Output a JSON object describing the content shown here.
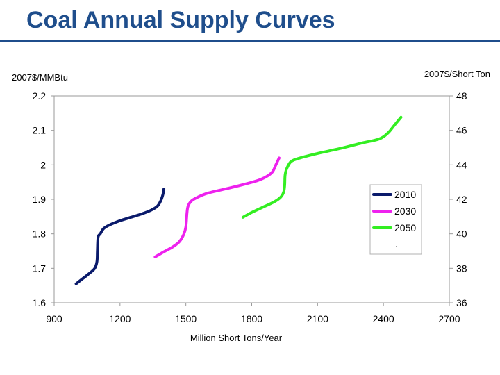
{
  "slide": {
    "title": "Coal Annual Supply Curves"
  },
  "chart_data": {
    "type": "line",
    "title": "Coal Annual Supply Curves",
    "xlabel": "Million Short Tons/Year",
    "ylabel": "2007$/MMBtu",
    "y2label": "2007$/Short Ton",
    "xlim": [
      900,
      2700
    ],
    "ylim": [
      1.6,
      2.2
    ],
    "y2lim": [
      36,
      48
    ],
    "x_ticks": [
      "900",
      "1200",
      "1500",
      "1800",
      "2100",
      "2400",
      "2700"
    ],
    "y_ticks": [
      "1.6",
      "1.7",
      "1.8",
      "1.9",
      "2",
      "2.1",
      "2.2"
    ],
    "y2_ticks": [
      "36",
      "38",
      "40",
      "42",
      "44",
      "46",
      "48"
    ],
    "grid": false,
    "legend_position": "right-inside",
    "legend_extra_entry": ".",
    "series": [
      {
        "name": "2010",
        "color": "#0a1a6b",
        "x": [
          1000,
          1030,
          1060,
          1085,
          1095,
          1097,
          1100,
          1110,
          1125,
          1150,
          1200,
          1250,
          1300,
          1340,
          1370,
          1385,
          1395,
          1400
        ],
        "y": [
          1.655,
          1.67,
          1.685,
          1.7,
          1.72,
          1.75,
          1.79,
          1.8,
          1.815,
          1.825,
          1.838,
          1.848,
          1.858,
          1.868,
          1.88,
          1.895,
          1.913,
          1.93
        ]
      },
      {
        "name": "2030",
        "color": "#ee22ee",
        "x": [
          1360,
          1400,
          1440,
          1470,
          1490,
          1500,
          1505,
          1510,
          1525,
          1550,
          1600,
          1700,
          1780,
          1830,
          1870,
          1895,
          1910,
          1925
        ],
        "y": [
          1.733,
          1.748,
          1.762,
          1.777,
          1.798,
          1.82,
          1.86,
          1.88,
          1.895,
          1.905,
          1.918,
          1.933,
          1.946,
          1.955,
          1.967,
          1.98,
          2.0,
          2.02
        ]
      },
      {
        "name": "2050",
        "color": "#33ee22",
        "x": [
          1760,
          1800,
          1850,
          1900,
          1930,
          1945,
          1950,
          1952,
          1960,
          1980,
          2020,
          2100,
          2200,
          2300,
          2380,
          2420,
          2450,
          2480
        ],
        "y": [
          1.848,
          1.862,
          1.877,
          1.892,
          1.905,
          1.92,
          1.94,
          1.97,
          1.99,
          2.01,
          2.02,
          2.033,
          2.047,
          2.063,
          2.075,
          2.092,
          2.115,
          2.138
        ]
      }
    ]
  }
}
